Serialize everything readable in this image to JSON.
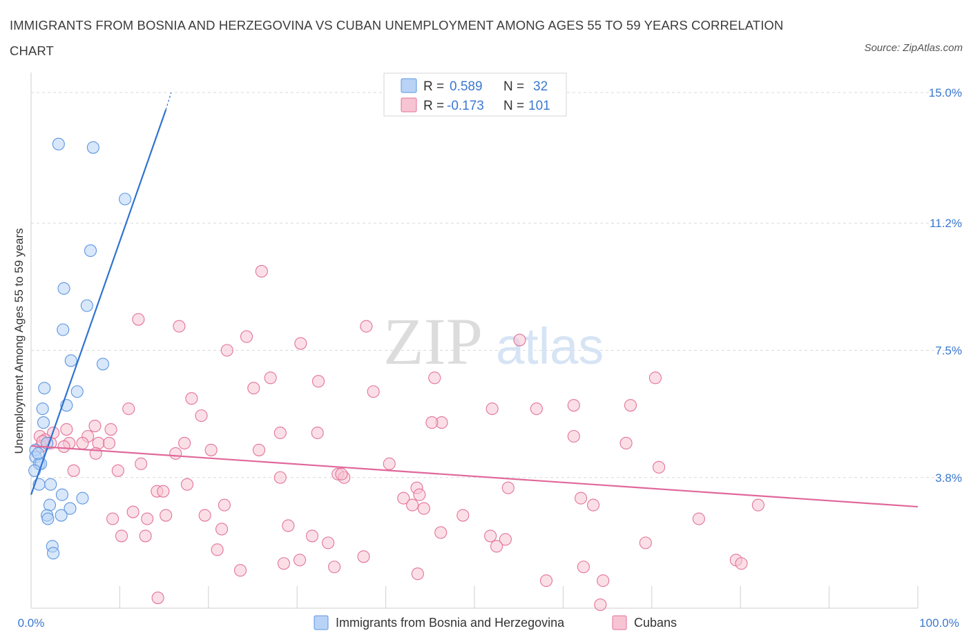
{
  "title": "IMMIGRANTS FROM BOSNIA AND HERZEGOVINA VS CUBAN UNEMPLOYMENT AMONG AGES 55 TO 59 YEARS CORRELATION CHART",
  "source": "Source: ZipAtlas.com",
  "colors": {
    "blue": "#5b95e0",
    "blue_fill": "#b8d3f5",
    "pink": "#e2729a",
    "pink_fill": "#f7c4d4",
    "axis_label": "#3b78d0",
    "grid": "#d9d9d9"
  },
  "legend": {
    "rows": [
      {
        "r_label": "R =",
        "r_value": "0.589",
        "n_label": "N =",
        "n_value": "32"
      },
      {
        "r_label": "R =",
        "r_value": "-0.173",
        "n_label": "N =",
        "n_value": "101"
      }
    ]
  },
  "chart_data": {
    "type": "scatter",
    "title": "IMMIGRANTS FROM BOSNIA AND HERZEGOVINA VS CUBAN UNEMPLOYMENT AMONG AGES 55 TO 59 YEARS CORRELATION CHART",
    "xlabel": "",
    "ylabel": "Unemployment Among Ages 55 to 59 years",
    "xlim": [
      0,
      100
    ],
    "ylim": [
      0,
      15.0
    ],
    "x_tick_labels": [
      "0.0%",
      "100.0%"
    ],
    "y_ticks": [
      3.8,
      7.5,
      11.2,
      15.0
    ],
    "y_tick_labels": [
      "3.8%",
      "7.5%",
      "11.2%",
      "15.0%"
    ],
    "watermark": {
      "part1": "ZIP",
      "part2": "atlas"
    },
    "series": [
      {
        "name": "Immigrants from Bosnia and Herzegovina",
        "color": "blue",
        "R": 0.589,
        "N": 32,
        "trend": {
          "x": [
            0.0,
            15.2
          ],
          "y": [
            3.3,
            14.5
          ],
          "dashed_ext_x": [
            15.2,
            15.8
          ],
          "dashed_ext_y": [
            14.5,
            15.0
          ]
        },
        "points": [
          [
            3.1,
            13.5
          ],
          [
            7.0,
            13.4
          ],
          [
            10.6,
            11.9
          ],
          [
            6.7,
            10.4
          ],
          [
            3.7,
            9.3
          ],
          [
            6.3,
            8.8
          ],
          [
            3.6,
            8.1
          ],
          [
            4.5,
            7.2
          ],
          [
            8.1,
            7.1
          ],
          [
            1.5,
            6.4
          ],
          [
            5.2,
            6.3
          ],
          [
            4.0,
            5.9
          ],
          [
            1.3,
            5.8
          ],
          [
            1.4,
            5.4
          ],
          [
            1.8,
            4.8
          ],
          [
            0.5,
            4.6
          ],
          [
            0.5,
            4.4
          ],
          [
            0.9,
            4.2
          ],
          [
            1.1,
            4.2
          ],
          [
            0.4,
            4.0
          ],
          [
            0.9,
            3.6
          ],
          [
            2.2,
            3.6
          ],
          [
            3.5,
            3.3
          ],
          [
            5.8,
            3.2
          ],
          [
            2.1,
            3.0
          ],
          [
            4.4,
            2.9
          ],
          [
            3.4,
            2.7
          ],
          [
            1.8,
            2.7
          ],
          [
            1.9,
            2.6
          ],
          [
            2.4,
            1.8
          ],
          [
            2.5,
            1.6
          ],
          [
            0.8,
            4.5
          ]
        ]
      },
      {
        "name": "Cubans",
        "color": "pink",
        "R": -0.173,
        "N": 101,
        "trend": {
          "x": [
            0.0,
            100.0
          ],
          "y": [
            4.72,
            2.95
          ]
        },
        "points": [
          [
            26.0,
            9.8
          ],
          [
            12.1,
            8.4
          ],
          [
            16.7,
            8.2
          ],
          [
            37.8,
            8.2
          ],
          [
            24.3,
            7.9
          ],
          [
            55.1,
            7.8
          ],
          [
            30.4,
            7.7
          ],
          [
            22.1,
            7.5
          ],
          [
            27.0,
            6.7
          ],
          [
            32.4,
            6.6
          ],
          [
            45.5,
            6.7
          ],
          [
            70.4,
            6.7
          ],
          [
            25.1,
            6.4
          ],
          [
            38.6,
            6.3
          ],
          [
            18.1,
            6.1
          ],
          [
            11.0,
            5.8
          ],
          [
            52.0,
            5.8
          ],
          [
            57.0,
            5.8
          ],
          [
            61.2,
            5.9
          ],
          [
            67.6,
            5.9
          ],
          [
            19.2,
            5.6
          ],
          [
            46.3,
            5.4
          ],
          [
            7.2,
            5.3
          ],
          [
            4.0,
            5.2
          ],
          [
            9.0,
            5.2
          ],
          [
            28.1,
            5.1
          ],
          [
            32.3,
            5.1
          ],
          [
            2.5,
            5.1
          ],
          [
            1.0,
            5.0
          ],
          [
            6.4,
            5.0
          ],
          [
            61.2,
            5.0
          ],
          [
            1.6,
            4.9
          ],
          [
            2.2,
            4.8
          ],
          [
            4.3,
            4.8
          ],
          [
            5.8,
            4.8
          ],
          [
            7.6,
            4.8
          ],
          [
            8.8,
            4.8
          ],
          [
            17.3,
            4.8
          ],
          [
            67.1,
            4.8
          ],
          [
            3.7,
            4.7
          ],
          [
            1.1,
            4.7
          ],
          [
            20.3,
            4.6
          ],
          [
            25.7,
            4.6
          ],
          [
            7.3,
            4.5
          ],
          [
            16.3,
            4.5
          ],
          [
            12.4,
            4.2
          ],
          [
            40.4,
            4.2
          ],
          [
            70.8,
            4.1
          ],
          [
            9.8,
            4.0
          ],
          [
            4.8,
            4.0
          ],
          [
            34.6,
            3.9
          ],
          [
            28.1,
            3.8
          ],
          [
            35.3,
            3.8
          ],
          [
            43.5,
            3.5
          ],
          [
            53.8,
            3.5
          ],
          [
            17.6,
            3.6
          ],
          [
            14.2,
            3.4
          ],
          [
            14.9,
            3.4
          ],
          [
            43.8,
            3.3
          ],
          [
            42.0,
            3.2
          ],
          [
            43.0,
            3.0
          ],
          [
            44.3,
            2.9
          ],
          [
            62.0,
            3.2
          ],
          [
            63.4,
            3.0
          ],
          [
            21.8,
            3.0
          ],
          [
            82.0,
            3.0
          ],
          [
            11.5,
            2.8
          ],
          [
            15.2,
            2.7
          ],
          [
            19.6,
            2.7
          ],
          [
            48.7,
            2.7
          ],
          [
            9.2,
            2.6
          ],
          [
            13.1,
            2.6
          ],
          [
            75.3,
            2.6
          ],
          [
            29.0,
            2.4
          ],
          [
            21.5,
            2.3
          ],
          [
            46.2,
            2.2
          ],
          [
            10.2,
            2.1
          ],
          [
            12.9,
            2.1
          ],
          [
            31.7,
            2.1
          ],
          [
            51.8,
            2.1
          ],
          [
            53.5,
            2.0
          ],
          [
            33.5,
            1.9
          ],
          [
            52.5,
            1.8
          ],
          [
            69.3,
            1.9
          ],
          [
            21.0,
            1.7
          ],
          [
            30.3,
            1.4
          ],
          [
            37.5,
            1.5
          ],
          [
            79.5,
            1.4
          ],
          [
            80.1,
            1.3
          ],
          [
            28.5,
            1.3
          ],
          [
            34.2,
            1.2
          ],
          [
            23.6,
            1.1
          ],
          [
            62.3,
            1.2
          ],
          [
            43.6,
            1.0
          ],
          [
            58.1,
            0.8
          ],
          [
            64.5,
            0.8
          ],
          [
            14.3,
            0.3
          ],
          [
            64.2,
            0.1
          ],
          [
            45.2,
            5.4
          ],
          [
            35.0,
            3.9
          ],
          [
            1.3,
            4.85
          ]
        ]
      }
    ]
  }
}
